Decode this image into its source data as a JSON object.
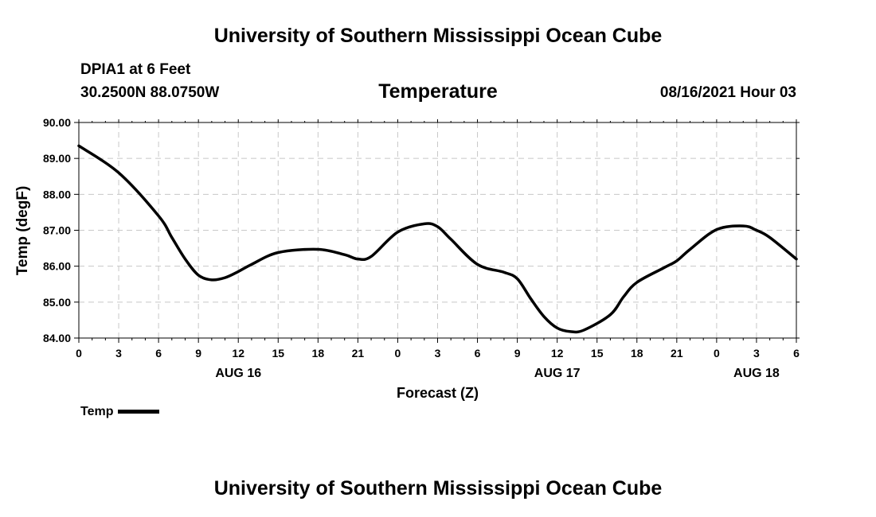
{
  "header": {
    "title": "University of Southern Mississippi Ocean Cube",
    "station": "DPIA1 at 6 Feet",
    "coords": "30.2500N  88.0750W",
    "datetime": "08/16/2021 Hour 03"
  },
  "footer": {
    "title": "University of Southern Mississippi Ocean Cube"
  },
  "legend": {
    "label": "Temp"
  },
  "colors": {
    "line": "#000000",
    "grid": "#c8c8c8"
  },
  "chart_data": {
    "type": "line",
    "title": "Temperature",
    "xlabel": "Forecast (Z)",
    "ylabel": "Temp (degF)",
    "ylim": [
      84.0,
      90.0
    ],
    "y_ticks": [
      "84.00",
      "85.00",
      "86.00",
      "87.00",
      "88.00",
      "89.00",
      "90.00"
    ],
    "x_range_hours": [
      0,
      54
    ],
    "x_tick_labels": [
      "0",
      "3",
      "6",
      "9",
      "12",
      "15",
      "18",
      "21",
      "0",
      "3",
      "6",
      "9",
      "12",
      "15",
      "18",
      "21",
      "0",
      "3",
      "6"
    ],
    "date_labels": [
      {
        "label": "AUG 16",
        "hour": 12
      },
      {
        "label": "AUG 17",
        "hour": 36
      },
      {
        "label": "AUG 18",
        "hour": 51
      }
    ],
    "grid": true,
    "series": [
      {
        "name": "Temp",
        "x": [
          0,
          3,
          6,
          7,
          8,
          9,
          10,
          11,
          12,
          13,
          15,
          18,
          20,
          21,
          22,
          24,
          26,
          27,
          28,
          30,
          32,
          33,
          34,
          35,
          36,
          37,
          38,
          40,
          41,
          42,
          44,
          45,
          46,
          48,
          50,
          51,
          52,
          54
        ],
        "y": [
          89.35,
          88.6,
          87.4,
          86.8,
          86.2,
          85.75,
          85.62,
          85.68,
          85.85,
          86.05,
          86.38,
          86.47,
          86.32,
          86.2,
          86.27,
          86.95,
          87.18,
          87.1,
          86.75,
          86.05,
          85.83,
          85.65,
          85.1,
          84.6,
          84.28,
          84.18,
          84.22,
          84.65,
          85.15,
          85.55,
          85.95,
          86.15,
          86.47,
          87.02,
          87.12,
          87.0,
          86.8,
          86.2
        ]
      }
    ]
  }
}
